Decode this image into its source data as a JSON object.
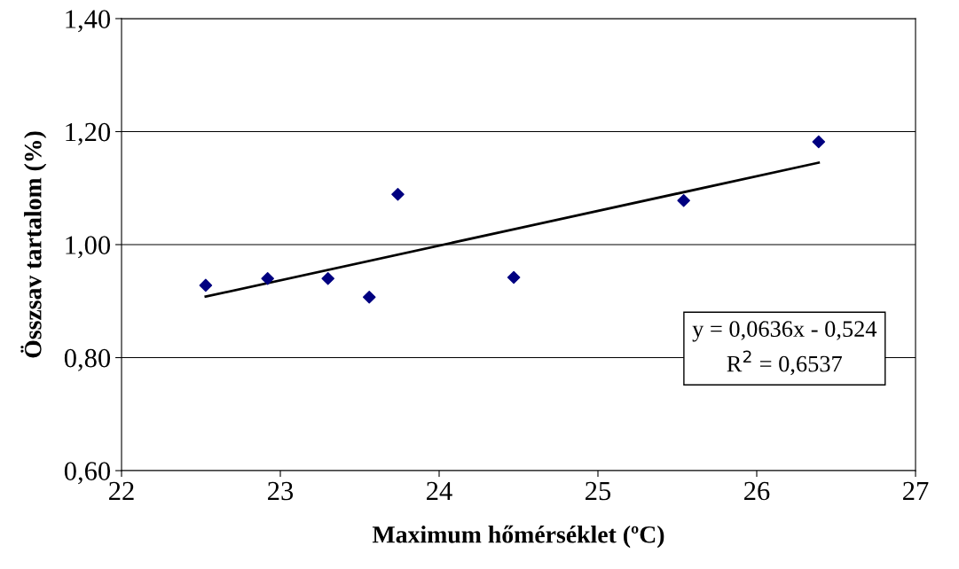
{
  "chart_data": {
    "type": "scatter",
    "xlabel": "Maximum hőmérséklet (ºC)",
    "ylabel": "Összsav tartalom (%)",
    "x": [
      22.53,
      22.92,
      23.3,
      23.56,
      23.74,
      24.47,
      25.54,
      26.39
    ],
    "series": [
      {
        "color": "#000080",
        "marker": "diamond",
        "values": [
          0.928,
          0.94,
          0.94,
          0.907,
          1.089,
          0.942,
          1.078,
          1.182
        ]
      },
      {
        "type": "line",
        "color": "#000000",
        "marker": "none",
        "line_style": "solid",
        "x": [
          22.53,
          26.39
        ],
        "values": [
          0.908,
          1.145
        ]
      }
    ],
    "xlim": [
      22,
      27
    ],
    "xticks": [
      22,
      23,
      24,
      25,
      26,
      27
    ],
    "ylim": [
      0.6,
      1.4
    ],
    "yticks": [
      {
        "value": 0.6,
        "label": "0,60"
      },
      {
        "value": 0.8,
        "label": "0,80"
      },
      {
        "value": 1.0,
        "label": "1,00"
      },
      {
        "value": 1.2,
        "label": "1,20"
      },
      {
        "value": 1.4,
        "label": "1,40"
      }
    ],
    "grid": "y",
    "legend": false,
    "annotations": [
      "y = 0,0636x - 0,524",
      "R$^{2}$ = 0,6537"
    ]
  }
}
